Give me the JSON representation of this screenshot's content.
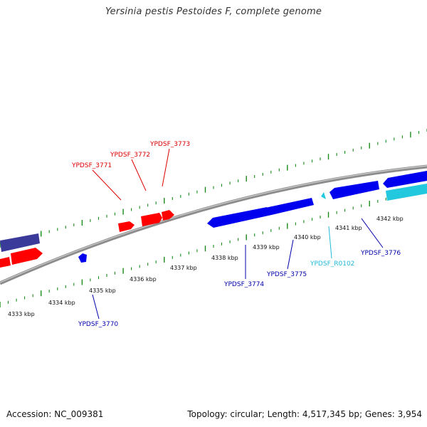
{
  "header": {
    "title": "Yersinia pestis Pestoides F, complete genome"
  },
  "footer": {
    "accession": "Accession: NC_009381",
    "summary": "Topology: circular; Length: 4,517,345 bp; Genes: 3,954"
  },
  "colors": {
    "backbone": "#8c8c8c",
    "forward_gene": "#ff0000",
    "reverse_gene": "#0000ee",
    "rna_gene": "#22c8dd",
    "partial_gene": "#3a3a9a",
    "ticks": "#1a8a1a",
    "label_red": "#dd0000",
    "label_blue": "#0000aa",
    "label_cyan": "#22b8d8"
  },
  "scale": {
    "unit": "kbp",
    "ticks": [
      {
        "kbp": 4333,
        "label": "4333 kbp"
      },
      {
        "kbp": 4334,
        "label": "4334 kbp"
      },
      {
        "kbp": 4335,
        "label": "4335 kbp"
      },
      {
        "kbp": 4336,
        "label": "4336 kbp"
      },
      {
        "kbp": 4337,
        "label": "4337 kbp"
      },
      {
        "kbp": 4338,
        "label": "4338 kbp"
      },
      {
        "kbp": 4339,
        "label": "4339 kbp"
      },
      {
        "kbp": 4340,
        "label": "4340 kbp"
      },
      {
        "kbp": 4341,
        "label": "4341 kbp"
      },
      {
        "kbp": 4342,
        "label": "4342 kbp"
      }
    ]
  },
  "gene_labels": {
    "YPDSF_3770": "YPDSF_3770",
    "YPDSF_3771": "YPDSF_3771",
    "YPDSF_3772": "YPDSF_3772",
    "YPDSF_3773": "YPDSF_3773",
    "YPDSF_3774": "YPDSF_3774",
    "YPDSF_3775": "YPDSF_3775",
    "YPDSF_R0102": "YPDSF_R0102",
    "YPDSF_3776": "YPDSF_3776"
  }
}
